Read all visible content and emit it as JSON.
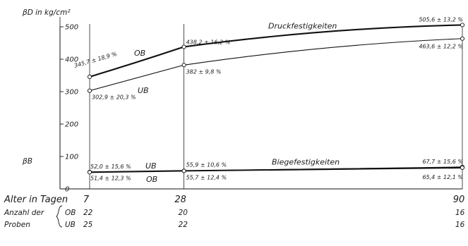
{
  "chart_data": {
    "type": "line",
    "title": "",
    "ylabel": "βD in kg/cm²",
    "ylabel_secondary": "βB",
    "xlabel": "Alter in Tagen",
    "ylim": [
      0,
      500
    ],
    "y_ticks": [
      0,
      100,
      200,
      300,
      400,
      500
    ],
    "x": [
      7,
      28,
      90
    ],
    "x_tick_labels": [
      "7",
      "28",
      "90"
    ],
    "grid": "vertical lines at 7, 28 and 90 days",
    "series": [
      {
        "group": "Druckfestigkeiten",
        "name": "OB",
        "values": [
          345.7,
          438.2,
          505.6
        ],
        "labels": [
          "345,7 ± 18,9 %",
          "438,2 ± 16,2 %",
          "505,6 ± 13,2 %"
        ],
        "stroke": "#111111",
        "weight": "heavy"
      },
      {
        "group": "Druckfestigkeiten",
        "name": "UB",
        "values": [
          302.9,
          382,
          463.6
        ],
        "labels": [
          "302,9 ± 20,3 %",
          "382 ± 9,8 %",
          "463,6 ± 12,2 %"
        ],
        "stroke": "#111111",
        "weight": "light"
      },
      {
        "group": "Biegefestigkeiten",
        "name": "UB",
        "values": [
          52.0,
          55.9,
          67.7
        ],
        "labels": [
          "52,0 ± 15,6 %",
          "55,9 ± 10,6 %",
          "67,7 ± 15,6 %"
        ],
        "stroke": "#111111",
        "weight": "light"
      },
      {
        "group": "Biegefestigkeiten",
        "name": "OB",
        "values": [
          51.4,
          55.7,
          65.4
        ],
        "labels": [
          "51,4 ± 12,3 %",
          "55,7 ± 12,4 %",
          "65,4 ± 12,1 %"
        ],
        "stroke": "#111111",
        "weight": "heavy"
      }
    ],
    "group_labels": {
      "Druckfestigkeiten": "Druckfestigkeiten",
      "Biegefestigkeiten": "Biegefestigkeiten"
    },
    "curve_labels": [
      {
        "text": "OB",
        "series": 0
      },
      {
        "text": "UB",
        "series": 1
      },
      {
        "text": "UB",
        "series": 2
      },
      {
        "text": "OB",
        "series": 3
      }
    ],
    "sample_counts": {
      "label_line1": "Anzahl der",
      "label_line2": "Proben",
      "rows": [
        {
          "name": "OB",
          "values": [
            "22",
            "20",
            "16"
          ]
        },
        {
          "name": "UB",
          "values": [
            "25",
            "22",
            "16"
          ]
        }
      ]
    }
  }
}
